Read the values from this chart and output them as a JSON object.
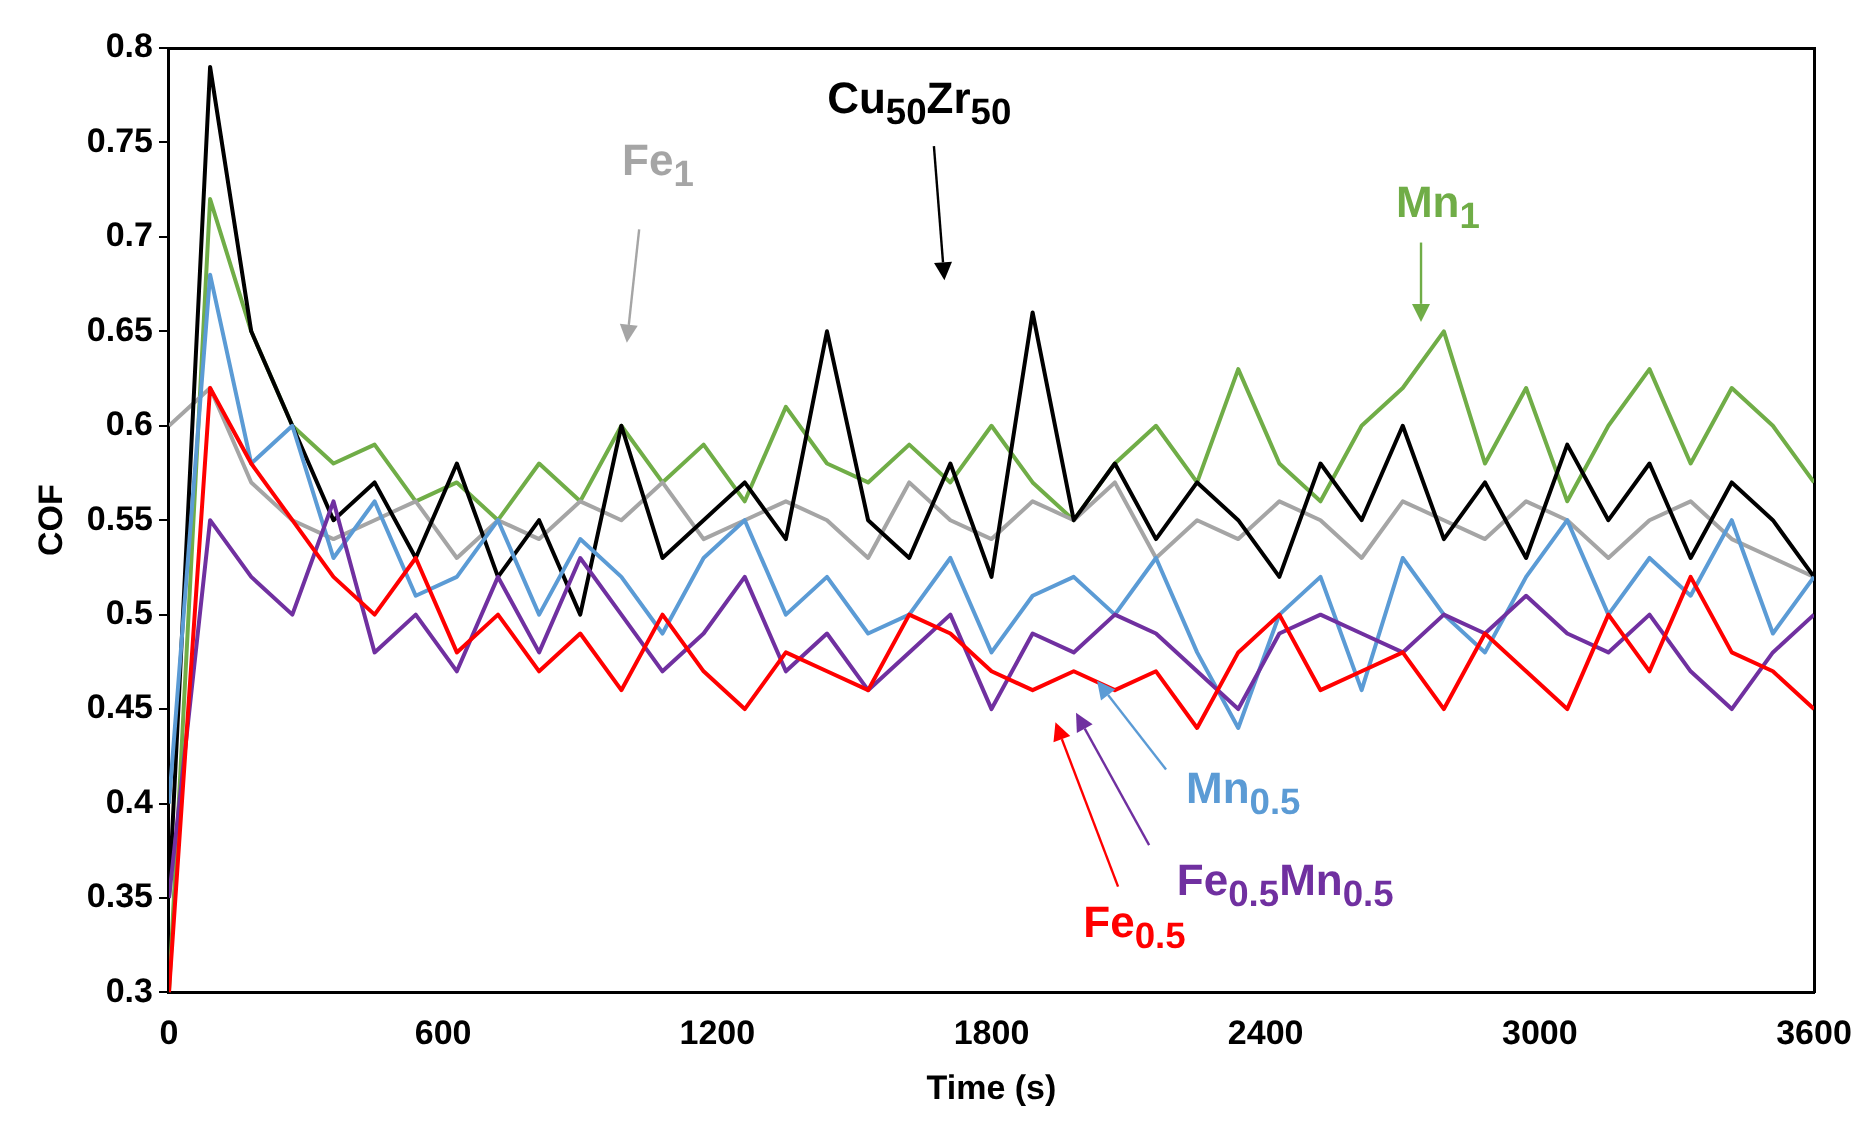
{
  "chart_data": {
    "type": "line",
    "xlabel": "Time (s)",
    "ylabel": "COF",
    "x": [
      0,
      90,
      180,
      270,
      360,
      450,
      540,
      630,
      720,
      810,
      900,
      990,
      1080,
      1170,
      1260,
      1350,
      1440,
      1530,
      1620,
      1710,
      1800,
      1890,
      1980,
      2070,
      2160,
      2250,
      2340,
      2430,
      2520,
      2610,
      2700,
      2790,
      2880,
      2970,
      3060,
      3150,
      3240,
      3330,
      3420,
      3510,
      3600
    ],
    "xlim": [
      0,
      3600
    ],
    "xticks": [
      0,
      600,
      1200,
      1800,
      2400,
      3000,
      3600
    ],
    "ylim": [
      0.3,
      0.8
    ],
    "yticks": [
      0.3,
      0.35,
      0.4,
      0.45,
      0.5,
      0.55,
      0.6,
      0.65,
      0.7,
      0.75,
      0.8
    ],
    "grid": false,
    "legend": false,
    "marker": "none",
    "line_style": "solid",
    "series": [
      {
        "name": "Fe$_{0.5}$",
        "color": "#ff0000",
        "values": [
          0.3,
          0.62,
          0.58,
          0.55,
          0.52,
          0.5,
          0.53,
          0.48,
          0.5,
          0.47,
          0.49,
          0.46,
          0.5,
          0.47,
          0.45,
          0.48,
          0.47,
          0.46,
          0.5,
          0.49,
          0.47,
          0.46,
          0.47,
          0.46,
          0.47,
          0.44,
          0.48,
          0.5,
          0.46,
          0.47,
          0.48,
          0.45,
          0.49,
          0.47,
          0.45,
          0.5,
          0.47,
          0.52,
          0.48,
          0.47,
          0.45
        ]
      },
      {
        "name": "Fe$_{0.5}$Mn$_{0.5}$",
        "color": "#7030a0",
        "values": [
          0.35,
          0.55,
          0.52,
          0.5,
          0.56,
          0.48,
          0.5,
          0.47,
          0.52,
          0.48,
          0.53,
          0.5,
          0.47,
          0.49,
          0.52,
          0.47,
          0.49,
          0.46,
          0.48,
          0.5,
          0.45,
          0.49,
          0.48,
          0.5,
          0.49,
          0.47,
          0.45,
          0.49,
          0.5,
          0.49,
          0.48,
          0.5,
          0.49,
          0.51,
          0.49,
          0.48,
          0.5,
          0.47,
          0.45,
          0.48,
          0.5
        ]
      },
      {
        "name": "Mn$_{0.5}$",
        "color": "#5b9bd5",
        "values": [
          0.4,
          0.68,
          0.58,
          0.6,
          0.53,
          0.56,
          0.51,
          0.52,
          0.55,
          0.5,
          0.54,
          0.52,
          0.49,
          0.53,
          0.55,
          0.5,
          0.52,
          0.49,
          0.5,
          0.53,
          0.48,
          0.51,
          0.52,
          0.5,
          0.53,
          0.48,
          0.44,
          0.5,
          0.52,
          0.46,
          0.53,
          0.5,
          0.48,
          0.52,
          0.55,
          0.5,
          0.53,
          0.51,
          0.55,
          0.49,
          0.52
        ]
      },
      {
        "name": "Cu$_{50}$Zr$_{50}$",
        "color": "#000000",
        "values": [
          0.35,
          0.79,
          0.65,
          0.6,
          0.55,
          0.57,
          0.53,
          0.58,
          0.52,
          0.55,
          0.5,
          0.6,
          0.53,
          0.55,
          0.57,
          0.54,
          0.65,
          0.55,
          0.53,
          0.58,
          0.52,
          0.66,
          0.55,
          0.58,
          0.54,
          0.57,
          0.55,
          0.52,
          0.58,
          0.55,
          0.6,
          0.54,
          0.57,
          0.53,
          0.59,
          0.55,
          0.58,
          0.53,
          0.57,
          0.55,
          0.52
        ]
      },
      {
        "name": "Fe$_{1}$",
        "color": "#a5a5a5",
        "values": [
          0.6,
          0.62,
          0.57,
          0.55,
          0.54,
          0.55,
          0.56,
          0.53,
          0.55,
          0.54,
          0.56,
          0.55,
          0.57,
          0.54,
          0.55,
          0.56,
          0.55,
          0.53,
          0.57,
          0.55,
          0.54,
          0.56,
          0.55,
          0.57,
          0.53,
          0.55,
          0.54,
          0.56,
          0.55,
          0.53,
          0.56,
          0.55,
          0.54,
          0.56,
          0.55,
          0.53,
          0.55,
          0.56,
          0.54,
          0.53,
          0.52
        ]
      },
      {
        "name": "Mn$_{1}$",
        "color": "#70ad47",
        "values": [
          0.3,
          0.72,
          0.65,
          0.6,
          0.58,
          0.59,
          0.56,
          0.57,
          0.55,
          0.58,
          0.56,
          0.6,
          0.57,
          0.59,
          0.56,
          0.61,
          0.58,
          0.57,
          0.59,
          0.57,
          0.6,
          0.57,
          0.55,
          0.58,
          0.6,
          0.57,
          0.63,
          0.58,
          0.56,
          0.6,
          0.62,
          0.65,
          0.58,
          0.62,
          0.56,
          0.6,
          0.63,
          0.58,
          0.62,
          0.6,
          0.57
        ]
      }
    ]
  }
}
